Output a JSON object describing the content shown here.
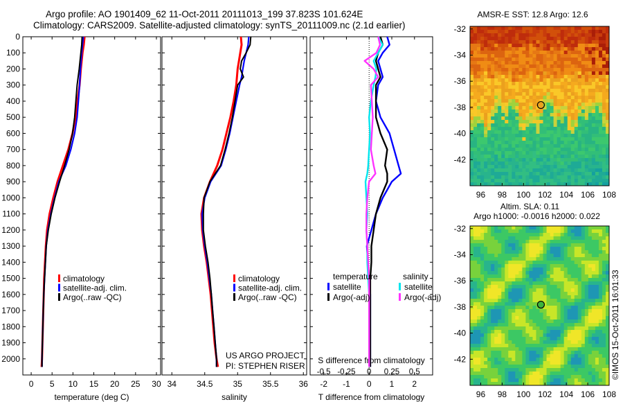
{
  "header": {
    "line1": "Argo profile: AO 1901409_62 11-Oct-2011 20111013_199 37.823S 101.624E",
    "line2": "Climatology: CARS2009. Satellite-adjusted climatology: synTS_20111009.nc (2.1d earlier)"
  },
  "colors": {
    "climatology": "#ff0000",
    "satellite": "#0000ff",
    "argo": "#000000",
    "cyan": "#00e5ee",
    "magenta": "#ff33ff"
  },
  "credits": {
    "project": "US ARGO PROJECT",
    "pi": "PI: STEPHEN RISER",
    "watermark": "©IMOS 15-Oct-2011 16:01:33"
  },
  "chart_data": [
    {
      "type": "line",
      "xlabel": "temperature (deg C)",
      "ylim": [
        2100,
        0
      ],
      "xlim": [
        -2,
        31
      ],
      "xticks": [
        "0",
        "5",
        "10",
        "15",
        "20",
        "25",
        "30"
      ],
      "yticks": [
        "0",
        "100",
        "200",
        "300",
        "400",
        "500",
        "600",
        "700",
        "800",
        "900",
        "1000",
        "1100",
        "1200",
        "1300",
        "1400",
        "1500",
        "1600",
        "1700",
        "1800",
        "1900",
        "2000"
      ],
      "depths": [
        0,
        50,
        100,
        200,
        300,
        400,
        500,
        600,
        700,
        800,
        900,
        1000,
        1100,
        1200,
        1300,
        1400,
        1500,
        1600,
        1700,
        1800,
        1900,
        2000,
        2050
      ],
      "legend": [
        "climatology",
        "satellite-adj. clim.",
        "Argo(..raw -QC)"
      ],
      "series": [
        {
          "name": "climatology",
          "values": [
            12.8,
            12.6,
            12.3,
            11.9,
            11.6,
            11.1,
            10.6,
            9.9,
            8.9,
            7.6,
            6.3,
            5.3,
            4.4,
            3.8,
            3.5,
            3.3,
            3.1,
            3.0,
            2.9,
            2.8,
            2.7,
            2.6,
            2.5
          ]
        },
        {
          "name": "satellite-adj. clim.",
          "values": [
            12.5,
            12.3,
            12.1,
            11.8,
            11.6,
            11.3,
            11.0,
            10.4,
            9.5,
            8.3,
            6.6,
            5.6,
            4.7,
            4.0,
            3.6,
            3.4,
            3.2,
            3.0,
            2.9,
            2.8,
            2.7,
            2.6,
            2.6
          ]
        },
        {
          "name": "Argo(..raw -QC)",
          "values": [
            12.2,
            12.1,
            11.9,
            11.5,
            11.0,
            10.7,
            10.4,
            9.9,
            9.1,
            8.0,
            6.8,
            5.7,
            4.8,
            4.1,
            3.6,
            3.4,
            3.2,
            3.0,
            2.9,
            2.8,
            2.7,
            2.6,
            2.6
          ]
        }
      ]
    },
    {
      "type": "line",
      "xlabel": "salinity",
      "ylim": [
        2100,
        0
      ],
      "xlim": [
        33.85,
        36.05
      ],
      "xticks": [
        "34",
        "34.5",
        "35",
        "35.5",
        "36"
      ],
      "depths": [
        0,
        50,
        100,
        150,
        200,
        250,
        300,
        400,
        500,
        600,
        700,
        800,
        900,
        1000,
        1100,
        1200,
        1300,
        1400,
        1500,
        1600,
        1700,
        1800,
        1900,
        2000,
        2050
      ],
      "legend": [
        "climatology",
        "satellite-adj. clim.",
        "Argo(..raw -QC)"
      ],
      "series": [
        {
          "name": "climatology",
          "values": [
            35.05,
            35.06,
            35.04,
            35.02,
            35.0,
            34.99,
            34.98,
            34.94,
            34.89,
            34.83,
            34.77,
            34.69,
            34.58,
            34.49,
            34.45,
            34.46,
            34.49,
            34.53,
            34.56,
            34.59,
            34.61,
            34.63,
            34.65,
            34.68,
            34.7
          ]
        },
        {
          "name": "satellite-adj. clim.",
          "values": [
            35.17,
            35.16,
            35.13,
            35.1,
            35.08,
            35.06,
            35.03,
            34.98,
            34.93,
            34.88,
            34.82,
            34.75,
            34.59,
            34.5,
            34.46,
            34.47,
            34.5,
            34.54,
            34.57,
            34.6,
            34.62,
            34.64,
            34.66,
            34.68,
            34.68
          ]
        },
        {
          "name": "Argo(..raw -QC)",
          "values": [
            35.2,
            35.19,
            35.13,
            35.06,
            35.04,
            35.09,
            35.0,
            34.96,
            34.92,
            34.87,
            34.81,
            34.74,
            34.58,
            34.49,
            34.48,
            34.48,
            34.51,
            34.55,
            34.58,
            34.6,
            34.62,
            34.64,
            34.66,
            34.68,
            34.68
          ]
        }
      ]
    },
    {
      "type": "line",
      "xlabel": "T difference from climatology",
      "xlabel_top": "S difference from climatology",
      "ylim": [
        2100,
        0
      ],
      "xlim": [
        -2.6,
        2.8
      ],
      "xticks": [
        "-2",
        "-1",
        "0",
        "1",
        "2"
      ],
      "xticks_top": [
        "-0.5",
        "-0.25",
        "0",
        "0.25",
        "0.5"
      ],
      "depths": [
        0,
        50,
        100,
        150,
        200,
        250,
        300,
        400,
        500,
        600,
        700,
        800,
        850,
        900,
        1000,
        1100,
        1200,
        1300,
        1400,
        1500,
        1600,
        1700,
        1800,
        1900,
        2000,
        2050
      ],
      "legend_groups": [
        {
          "heading": "temperature"
        },
        {
          "heading": "salinity"
        }
      ],
      "legend": [
        "satellite",
        "Argo(-adj)",
        "satellite",
        "Argo(-adj)"
      ],
      "series": [
        {
          "name": "satellite",
          "group": "temperature",
          "values": [
            0.8,
            0.9,
            0.6,
            0.4,
            0.5,
            0.6,
            0.4,
            0.3,
            0.5,
            0.9,
            1.1,
            1.3,
            1.4,
            1.0,
            0.6,
            0.3,
            0.1,
            -0.1,
            -0.05,
            0.0,
            0.05,
            0.05,
            0.05,
            0.05,
            0.05,
            0.05
          ]
        },
        {
          "name": "Argo(-adj)",
          "group": "temperature",
          "values": [
            0.5,
            0.6,
            0.4,
            0.3,
            0.4,
            0.5,
            0.3,
            0.3,
            0.3,
            0.5,
            0.8,
            0.7,
            0.8,
            0.8,
            0.5,
            0.3,
            0.2,
            0.1,
            0.1,
            0.05,
            0.05,
            0.05,
            0.05,
            0.05,
            0.05,
            0.05
          ]
        },
        {
          "name": "satellite",
          "group": "salinity",
          "values": [
            0.1,
            0.15,
            0.1,
            0.05,
            0.08,
            0.07,
            0.05,
            0.02,
            0.0,
            0.01,
            0.0,
            -0.01,
            -0.02,
            -0.04,
            -0.03,
            -0.02,
            -0.03,
            -0.02,
            -0.02,
            -0.01,
            0.0,
            0.0,
            0.0,
            0.0,
            0.0,
            0.0
          ]
        },
        {
          "name": "Argo(-adj)",
          "group": "salinity",
          "values": [
            0.1,
            0.12,
            0.08,
            -0.05,
            0.05,
            0.1,
            0.02,
            0.03,
            0.04,
            0.03,
            0.02,
            0.05,
            0.07,
            0.0,
            -0.02,
            -0.03,
            -0.03,
            -0.02,
            -0.01,
            0.0,
            0.0,
            0.0,
            0.0,
            0.0,
            0.0,
            0.0
          ]
        }
      ]
    },
    {
      "type": "heatmap",
      "title": "AMSR-E SST: 12.8 Argo: 12.6",
      "xticks": [
        "96",
        "98",
        "100",
        "102",
        "104",
        "106",
        "108"
      ],
      "yticks": [
        "-32",
        "-34",
        "-36",
        "-38",
        "-40",
        "-42"
      ],
      "xlim": [
        95,
        108
      ],
      "ylim": [
        -44,
        -31.8
      ],
      "argo_position": [
        101.624,
        -37.823
      ]
    },
    {
      "type": "heatmap",
      "title_line1": "Altim. SLA: 0.11",
      "title_line2": "Argo h1000: -0.0016 h2000: 0.022",
      "xticks": [
        "96",
        "98",
        "100",
        "102",
        "104",
        "106",
        "108"
      ],
      "yticks": [
        "-32",
        "-34",
        "-36",
        "-38",
        "-40",
        "-42"
      ],
      "xlim": [
        95,
        108
      ],
      "ylim": [
        -44,
        -31.8
      ],
      "argo_position": [
        101.624,
        -37.823
      ]
    }
  ]
}
